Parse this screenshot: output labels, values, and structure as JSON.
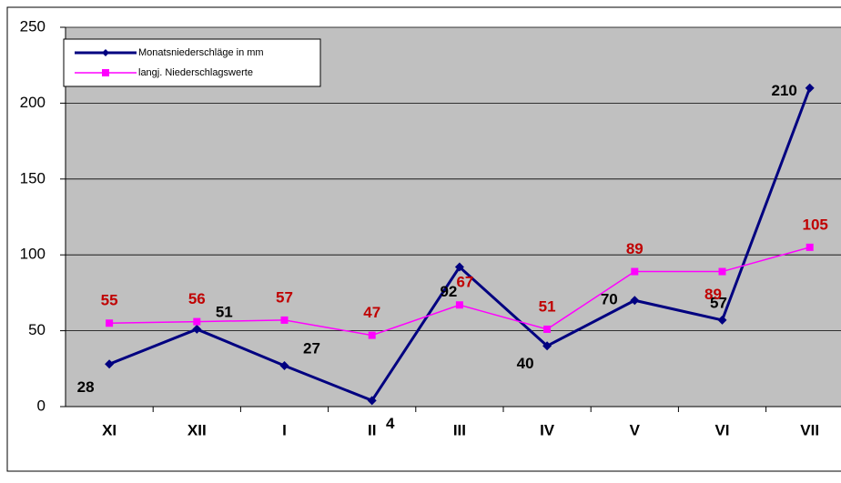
{
  "chart_data": {
    "type": "line",
    "categories": [
      "XI",
      "XII",
      "I",
      "II",
      "III",
      "IV",
      "V",
      "VI",
      "VII"
    ],
    "series": [
      {
        "name": "Monatsniederschläge in mm",
        "color": "#000080",
        "label_color": "#000000",
        "marker": "diamond",
        "values": [
          28,
          51,
          27,
          4,
          92,
          40,
          70,
          57,
          210
        ]
      },
      {
        "name": "langj. Niederschlagswerte",
        "color": "#ff00ff",
        "label_color": "#c00000",
        "marker": "square",
        "values": [
          55,
          56,
          57,
          47,
          67,
          51,
          89,
          89,
          105
        ]
      }
    ],
    "ylim": [
      0,
      250
    ],
    "yticks": [
      0,
      50,
      100,
      150,
      200,
      250
    ],
    "grid": true,
    "legend": "upper left"
  }
}
